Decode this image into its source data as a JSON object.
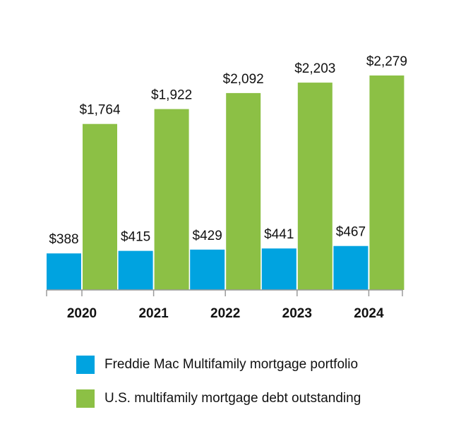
{
  "chart_data": {
    "type": "bar",
    "categories": [
      "2020",
      "2021",
      "2022",
      "2023",
      "2024"
    ],
    "series": [
      {
        "name": "Freddie Mac Multifamily mortgage portfolio",
        "values": [
          388,
          415,
          429,
          441,
          467
        ],
        "labels": [
          "$388",
          "$415",
          "$429",
          "$441",
          "$467"
        ],
        "color": "#00a3e0"
      },
      {
        "name": "U.S. multifamily mortgage debt outstanding",
        "values": [
          1764,
          1922,
          2092,
          2203,
          2279
        ],
        "labels": [
          "$1,764",
          "$1,922",
          "$2,092",
          "$2,203",
          "$2,279"
        ],
        "color": "#8cc045"
      }
    ],
    "title": "",
    "xlabel": "",
    "ylabel": "",
    "ylim": [
      0,
      2500
    ],
    "grid": false,
    "legend": "bottom"
  }
}
